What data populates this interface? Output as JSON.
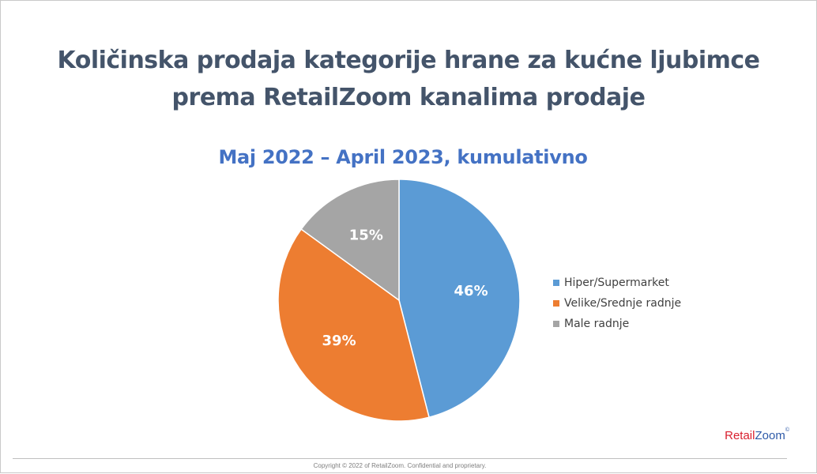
{
  "header": {
    "title": "Količinska prodaja kategorije hrane za kućne ljubimce prema RetailZoom kanalima prodaje",
    "subtitle": "Maj 2022 – April 2023, kumulativno"
  },
  "chart_data": {
    "type": "pie",
    "title": "Količinska prodaja kategorije hrane za kućne ljubimce prema RetailZoom kanalima prodaje",
    "subtitle": "Maj 2022 – April 2023, kumulativno",
    "categories": [
      "Hiper/Supermarket",
      "Velike/Srednje radnje",
      "Male radnje"
    ],
    "values": [
      46,
      39,
      15
    ],
    "labels": [
      "46%",
      "39%",
      "15%"
    ],
    "colors": [
      "#5b9bd5",
      "#ed7d31",
      "#a5a5a5"
    ],
    "legend_position": "right"
  },
  "legend": {
    "items": [
      {
        "label": "Hiper/Supermarket",
        "color": "#5b9bd5"
      },
      {
        "label": "Velike/Srednje radnje",
        "color": "#ed7d31"
      },
      {
        "label": "Male radnje",
        "color": "#a5a5a5"
      }
    ]
  },
  "branding": {
    "part1": "Retail",
    "part2": "Zoom",
    "mark": "©"
  },
  "footer": {
    "text": "Copyright © 2022 of RetailZoom. Confidential and proprietary."
  }
}
